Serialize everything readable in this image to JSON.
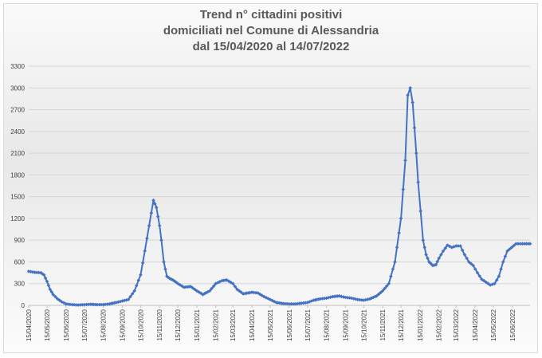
{
  "chart_data": {
    "type": "line",
    "title": [
      "Trend n° cittadini positivi",
      "domiciliati nel Comune di Alessandria",
      "dal 15/04/2020 al 14/07/2022"
    ],
    "xlabel": "",
    "ylabel": "",
    "ylim": [
      0,
      3300
    ],
    "yticks": [
      0,
      300,
      600,
      900,
      1200,
      1500,
      1800,
      2100,
      2400,
      2700,
      3000,
      3300
    ],
    "xticks": [
      "15/04/2020",
      "15/05/2020",
      "15/06/2020",
      "15/07/2020",
      "15/08/2020",
      "15/09/2020",
      "15/10/2020",
      "15/11/2020",
      "15/12/2020",
      "15/01/2021",
      "15/02/2021",
      "15/03/2021",
      "15/04/2021",
      "15/05/2021",
      "15/06/2021",
      "15/07/2021",
      "15/08/2021",
      "15/09/2021",
      "15/10/2021",
      "15/11/2021",
      "15/12/2021",
      "15/01/2022",
      "15/02/2022",
      "15/03/2022",
      "15/04/2022",
      "15/05/2022",
      "15/06/2022"
    ],
    "grid": true,
    "series_color": "#4472c4",
    "series": [
      {
        "x": [
          "2020-04-15",
          "2020-04-25",
          "2020-05-05",
          "2020-05-10",
          "2020-05-15",
          "2020-05-20",
          "2020-05-25",
          "2020-06-01",
          "2020-06-08",
          "2020-06-15",
          "2020-06-25",
          "2020-07-05",
          "2020-07-15",
          "2020-07-25",
          "2020-08-05",
          "2020-08-15",
          "2020-08-25",
          "2020-09-05",
          "2020-09-15",
          "2020-09-25",
          "2020-10-05",
          "2020-10-15",
          "2020-10-22",
          "2020-10-29",
          "2020-11-05",
          "2020-11-10",
          "2020-11-15",
          "2020-11-18",
          "2020-11-22",
          "2020-11-27",
          "2020-12-02",
          "2020-12-07",
          "2020-12-12",
          "2020-12-15",
          "2020-12-25",
          "2021-01-05",
          "2021-01-15",
          "2021-01-25",
          "2021-02-05",
          "2021-02-15",
          "2021-02-25",
          "2021-03-05",
          "2021-03-15",
          "2021-03-22",
          "2021-04-01",
          "2021-04-15",
          "2021-04-25",
          "2021-05-05",
          "2021-05-15",
          "2021-05-25",
          "2021-06-05",
          "2021-06-15",
          "2021-06-25",
          "2021-07-05",
          "2021-07-15",
          "2021-07-25",
          "2021-08-05",
          "2021-08-15",
          "2021-08-25",
          "2021-09-05",
          "2021-09-15",
          "2021-09-25",
          "2021-10-05",
          "2021-10-15",
          "2021-10-25",
          "2021-11-05",
          "2021-11-15",
          "2021-11-25",
          "2021-12-05",
          "2021-12-15",
          "2021-12-22",
          "2021-12-26",
          "2021-12-30",
          "2022-01-03",
          "2022-01-06",
          "2022-01-09",
          "2022-01-12",
          "2022-01-16",
          "2022-01-20",
          "2022-01-25",
          "2022-01-30",
          "2022-02-05",
          "2022-02-10",
          "2022-02-15",
          "2022-02-22",
          "2022-03-01",
          "2022-03-08",
          "2022-03-15",
          "2022-03-22",
          "2022-03-29",
          "2022-04-05",
          "2022-04-12",
          "2022-04-19",
          "2022-04-26",
          "2022-05-03",
          "2022-05-10",
          "2022-05-17",
          "2022-05-24",
          "2022-05-31",
          "2022-06-07",
          "2022-06-14",
          "2022-06-21",
          "2022-06-28",
          "2022-07-05",
          "2022-07-14"
        ],
        "y": [
          470,
          455,
          450,
          420,
          330,
          220,
          150,
          90,
          50,
          20,
          10,
          5,
          10,
          15,
          10,
          10,
          20,
          40,
          60,
          80,
          200,
          420,
          750,
          1100,
          1450,
          1350,
          1100,
          900,
          600,
          400,
          370,
          350,
          320,
          300,
          250,
          260,
          200,
          150,
          200,
          300,
          340,
          350,
          300,
          220,
          160,
          180,
          170,
          120,
          80,
          40,
          25,
          20,
          20,
          30,
          40,
          70,
          90,
          100,
          120,
          130,
          110,
          100,
          80,
          70,
          90,
          130,
          200,
          300,
          600,
          1200,
          2000,
          2900,
          3000,
          2800,
          2450,
          2100,
          1700,
          1300,
          900,
          700,
          600,
          550,
          560,
          650,
          750,
          830,
          800,
          820,
          820,
          700,
          600,
          550,
          450,
          360,
          320,
          280,
          300,
          400,
          600,
          750,
          800,
          850,
          850,
          850,
          850
        ]
      }
    ]
  }
}
